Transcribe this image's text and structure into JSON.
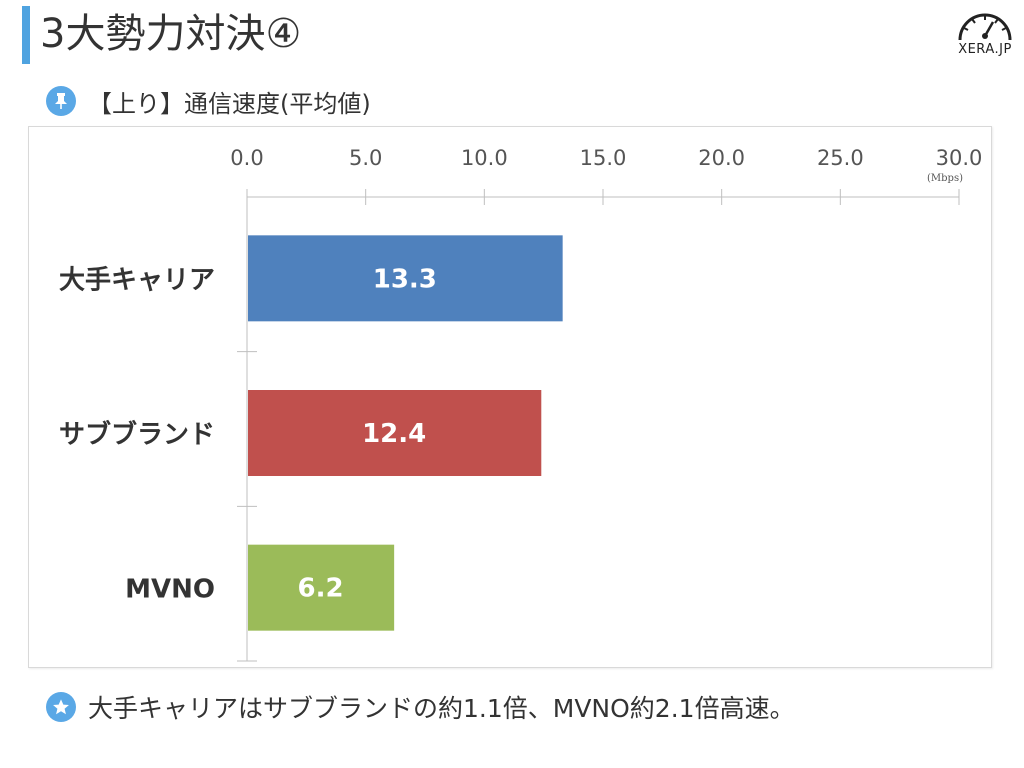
{
  "header": {
    "title": "3大勢力対決④",
    "logo_text": "XERA.JP"
  },
  "subtitle": {
    "icon": "pin-icon",
    "text": "【上り】通信速度(平均値)"
  },
  "note": {
    "icon": "star-icon",
    "text": "大手キャリアはサブブランドの約1.1倍、MVNO約2.1倍高速。"
  },
  "chart_data": {
    "type": "bar",
    "orientation": "horizontal",
    "categories": [
      "大手キャリア",
      "サブブランド",
      "MVNO"
    ],
    "values": [
      13.3,
      12.4,
      6.2
    ],
    "value_labels": [
      "13.3",
      "12.4",
      "6.2"
    ],
    "colors": [
      "#4f81bd",
      "#c0504d",
      "#9bbb59"
    ],
    "xlim": [
      0,
      30
    ],
    "ticks": [
      "0.0",
      "5.0",
      "10.0",
      "15.0",
      "20.0",
      "25.0",
      "30.0"
    ],
    "tick_values": [
      0,
      5,
      10,
      15,
      20,
      25,
      30
    ],
    "unit": "(Mbps)",
    "axis_position": "top",
    "grid": false,
    "legend": "none"
  }
}
